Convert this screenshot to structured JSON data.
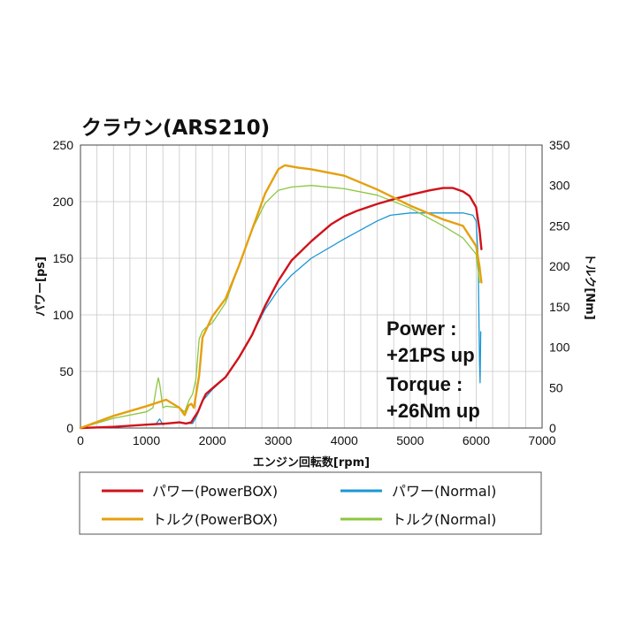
{
  "chart_data": {
    "type": "line",
    "title": "クラウン(ARS210)",
    "xlabel": "エンジン回転数[rpm]",
    "ylabel_left": "パワー[ps]",
    "ylabel_right": "トルク[Nm]",
    "xlim": [
      0,
      7000
    ],
    "ylim_left": [
      0,
      250
    ],
    "ylim_right": [
      0,
      350
    ],
    "x_ticks": [
      "0",
      "1000",
      "2000",
      "3000",
      "4000",
      "5000",
      "6000",
      "7000"
    ],
    "y_left_ticks": [
      "0",
      "50",
      "100",
      "150",
      "200",
      "250"
    ],
    "y_right_ticks": [
      "0",
      "50",
      "100",
      "150",
      "200",
      "250",
      "300",
      "350"
    ],
    "grid": true,
    "legend_position": "bottom",
    "annotations": [
      {
        "id": "power-line1",
        "text": "Power :"
      },
      {
        "id": "power-line2",
        "text": "+21PS up"
      },
      {
        "id": "torque-line1",
        "text": "Torque :"
      },
      {
        "id": "torque-line2",
        "text": "+26Nm up"
      }
    ],
    "series": [
      {
        "name": "パワー(PowerBOX)",
        "axis": "left",
        "color": "#d0121b",
        "x": [
          0,
          500,
          1000,
          1300,
          1500,
          1600,
          1680,
          1720,
          1780,
          1850,
          1900,
          2000,
          2200,
          2400,
          2600,
          2800,
          3000,
          3200,
          3500,
          3800,
          4000,
          4200,
          4500,
          4800,
          5000,
          5300,
          5500,
          5650,
          5800,
          5900,
          6000,
          6050,
          6080
        ],
        "y": [
          0,
          1,
          3,
          4,
          5,
          4,
          5,
          9,
          14,
          24,
          30,
          35,
          45,
          62,
          82,
          108,
          130,
          148,
          165,
          180,
          187,
          192,
          198,
          203,
          206,
          210,
          212,
          212,
          209,
          205,
          195,
          175,
          158
        ]
      },
      {
        "name": "トルク(PowerBOX)",
        "axis": "right",
        "color": "#e5a00f",
        "x": [
          0,
          500,
          1000,
          1300,
          1500,
          1580,
          1640,
          1680,
          1720,
          1800,
          1850,
          2000,
          2200,
          2400,
          2600,
          2800,
          3000,
          3100,
          3300,
          3500,
          4000,
          4500,
          5000,
          5500,
          5800,
          6000,
          6050,
          6080
        ],
        "y": [
          0,
          15,
          27,
          35,
          25,
          16,
          28,
          30,
          25,
          65,
          112,
          138,
          160,
          200,
          245,
          290,
          320,
          325,
          322,
          320,
          312,
          295,
          275,
          258,
          250,
          225,
          200,
          180
        ]
      },
      {
        "name": "パワー(Normal)",
        "axis": "left",
        "color": "#1a97d4",
        "x": [
          0,
          500,
          1000,
          1150,
          1200,
          1250,
          1300,
          1500,
          1600,
          1700,
          1760,
          1800,
          1850,
          2000,
          2200,
          2400,
          2600,
          2800,
          3000,
          3200,
          3500,
          4000,
          4500,
          4700,
          5000,
          5500,
          5800,
          5950,
          6000,
          6030,
          6050,
          6060,
          6070
        ],
        "y": [
          0,
          1,
          3,
          4,
          8,
          3,
          4,
          5,
          4,
          4,
          10,
          16,
          24,
          34,
          45,
          62,
          82,
          105,
          122,
          135,
          150,
          167,
          183,
          188,
          190,
          190,
          190,
          188,
          183,
          150,
          60,
          40,
          85
        ]
      },
      {
        "name": "トルク(Normal)",
        "axis": "right",
        "color": "#8cc63f",
        "x": [
          0,
          500,
          1000,
          1100,
          1150,
          1180,
          1200,
          1250,
          1300,
          1500,
          1580,
          1650,
          1700,
          1750,
          1800,
          1850,
          1900,
          2000,
          2200,
          2400,
          2600,
          2800,
          3000,
          3200,
          3500,
          4000,
          4500,
          5000,
          5500,
          5800,
          6000,
          6050
        ],
        "y": [
          0,
          12,
          20,
          25,
          50,
          62,
          55,
          25,
          27,
          25,
          20,
          35,
          42,
          60,
          110,
          120,
          124,
          130,
          155,
          200,
          245,
          278,
          294,
          298,
          300,
          296,
          288,
          272,
          250,
          235,
          215,
          180
        ]
      }
    ]
  }
}
